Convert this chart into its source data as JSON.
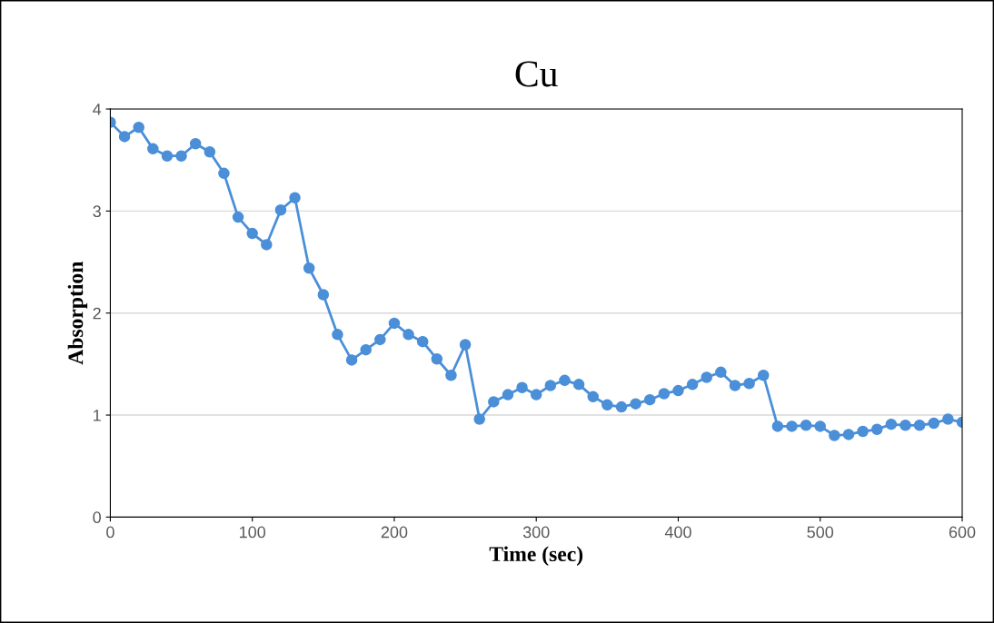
{
  "chart_data": {
    "type": "line",
    "title": "Cu",
    "xlabel": "Time (sec)",
    "ylabel": "Absorption",
    "x": [
      0,
      10,
      20,
      30,
      40,
      50,
      60,
      70,
      80,
      90,
      100,
      110,
      120,
      130,
      140,
      150,
      160,
      170,
      180,
      190,
      200,
      210,
      220,
      230,
      240,
      250,
      260,
      270,
      280,
      290,
      300,
      310,
      320,
      330,
      340,
      350,
      360,
      370,
      380,
      390,
      400,
      410,
      420,
      430,
      440,
      450,
      460,
      470,
      480,
      490,
      500,
      510,
      520,
      530,
      540,
      550,
      560,
      570,
      580,
      590,
      600
    ],
    "series": [
      {
        "color": "#4a8fd8",
        "values": [
          3.87,
          3.73,
          3.82,
          3.61,
          3.54,
          3.54,
          3.66,
          3.58,
          3.37,
          2.94,
          2.78,
          2.67,
          3.01,
          3.13,
          2.44,
          2.18,
          1.79,
          1.54,
          1.64,
          1.74,
          1.9,
          1.79,
          1.72,
          1.55,
          1.39,
          1.69,
          0.96,
          1.13,
          1.2,
          1.27,
          1.2,
          1.29,
          1.34,
          1.3,
          1.18,
          1.1,
          1.08,
          1.11,
          1.15,
          1.21,
          1.24,
          1.3,
          1.37,
          1.42,
          1.29,
          1.31,
          1.39,
          0.89,
          0.89,
          0.9,
          0.89,
          0.8,
          0.81,
          0.84,
          0.86,
          0.91,
          0.9,
          0.9,
          0.92,
          0.96,
          0.93
        ]
      }
    ],
    "xlim": [
      0,
      600
    ],
    "xticks": [
      0,
      100,
      200,
      300,
      400,
      500,
      600
    ],
    "ylim": [
      0,
      4
    ],
    "yticks": [
      0,
      1,
      2,
      3,
      4
    ],
    "grid": "y",
    "marker": "circle",
    "line_style": "solid"
  }
}
